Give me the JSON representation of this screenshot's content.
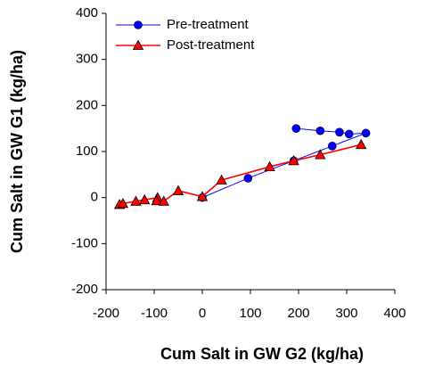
{
  "chart_data": {
    "type": "line",
    "x_label": "Cum Salt in GW G2 (kg/ha)",
    "y_label": "Cum Salt in GW G1 (kg/ha)",
    "xlim": [
      -200,
      400
    ],
    "xticks": [
      -200,
      -100,
      0,
      100,
      200,
      300,
      400
    ],
    "ylim": [
      -200,
      400
    ],
    "yticks": [
      -200,
      -100,
      0,
      100,
      200,
      300,
      400
    ],
    "legend": "upper left",
    "series": [
      {
        "name": "Pre-treatment",
        "color": "#0000ff",
        "marker": "circle",
        "x": [
          0,
          95,
          190,
          270,
          340,
          305,
          285,
          245,
          195
        ],
        "values": [
          0,
          42,
          80,
          112,
          140,
          138,
          142,
          145,
          150
        ]
      },
      {
        "name": "Post-treatment",
        "color": "#ff0000",
        "marker": "triangle",
        "x": [
          -172,
          -165,
          -138,
          -120,
          -93,
          -95,
          -80,
          -50,
          0,
          40,
          140,
          190,
          245,
          330
        ],
        "values": [
          -15,
          -13,
          -8,
          -5,
          0,
          -7,
          -8,
          15,
          2,
          38,
          67,
          80,
          93,
          115
        ]
      }
    ]
  }
}
